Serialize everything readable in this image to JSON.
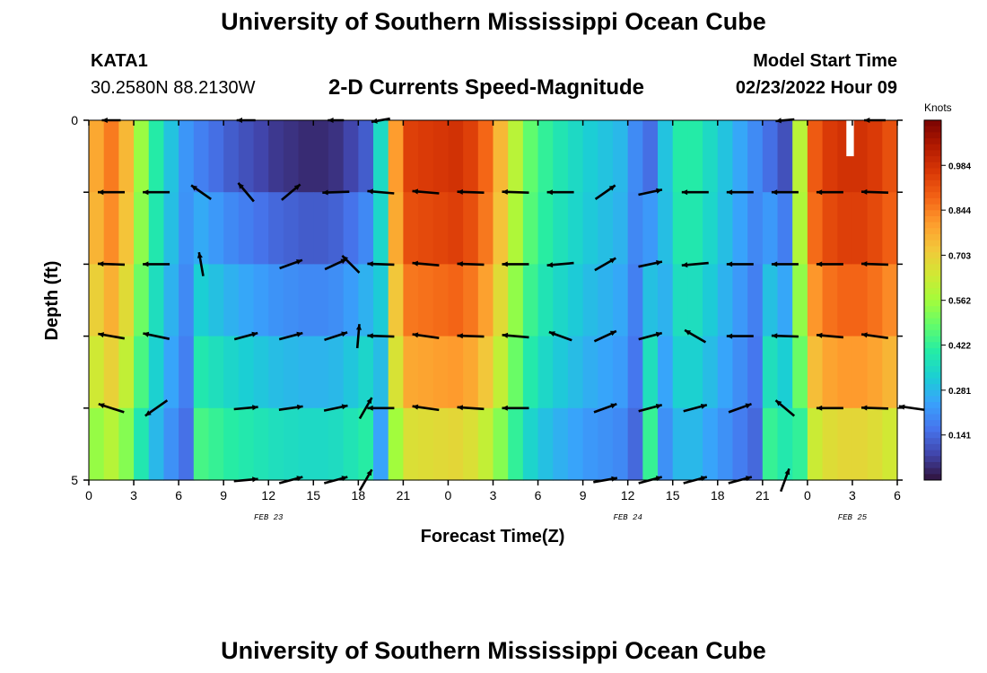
{
  "header": {
    "title": "University of Southern Mississippi Ocean Cube",
    "station": "KATA1",
    "coords": "30.2580N  88.2130W",
    "subtitle": "2-D Currents Speed-Magnitude",
    "model_start_label": "Model Start Time",
    "model_start_value": "02/23/2022 Hour 09"
  },
  "footer": {
    "title": "University of Southern Mississippi Ocean Cube"
  },
  "colors": {
    "scale": [
      "#30123b",
      "#4145ab",
      "#4675ed",
      "#39a2fc",
      "#1bcfd4",
      "#24eca6",
      "#61fc6c",
      "#a4fc3b",
      "#d1e834",
      "#f3c63a",
      "#fe9b2d",
      "#f36315",
      "#d93806",
      "#b11901",
      "#7a0402"
    ]
  },
  "chart_data": {
    "type": "heatmap",
    "title": "2-D Currents Speed-Magnitude",
    "xlabel": "Forecast Time(Z)",
    "ylabel": "Depth (ft)",
    "xlim": [
      0,
      54
    ],
    "ylim": [
      0,
      5
    ],
    "x_tick_labels": [
      "0",
      "3",
      "6",
      "9",
      "12",
      "15",
      "18",
      "21",
      "0",
      "3",
      "6",
      "9",
      "12",
      "15",
      "18",
      "21",
      "0",
      "3",
      "6"
    ],
    "y_tick_labels": [
      "0",
      "5"
    ],
    "date_labels": [
      {
        "hour": 12,
        "text": "FEB 23"
      },
      {
        "hour": 36,
        "text": "FEB 24"
      },
      {
        "hour": 51,
        "text": "FEB 25"
      }
    ],
    "colorbar": {
      "title": "Knots",
      "range": [
        0.0,
        1.125
      ],
      "ticks": [
        "0.141",
        "0.281",
        "0.422",
        "0.562",
        "0.703",
        "0.844",
        "0.984"
      ],
      "tick_values": [
        0.141,
        0.281,
        0.422,
        0.562,
        0.703,
        0.844,
        0.984
      ]
    },
    "time_hours": [
      0,
      1,
      2,
      3,
      4,
      5,
      6,
      7,
      8,
      9,
      10,
      11,
      12,
      13,
      14,
      15,
      16,
      17,
      18,
      19,
      20,
      21,
      22,
      23,
      24,
      25,
      26,
      27,
      28,
      29,
      30,
      31,
      32,
      33,
      34,
      35,
      36,
      37,
      38,
      39,
      40,
      41,
      42,
      43,
      44,
      45,
      46,
      47,
      48,
      49,
      50,
      51,
      52,
      53,
      54
    ],
    "depth_layers": [
      0.5,
      1.5,
      2.5,
      3.5,
      4.5
    ],
    "speed_profile_knots": [
      0.78,
      0.85,
      0.75,
      0.55,
      0.4,
      0.3,
      0.22,
      0.18,
      0.15,
      0.12,
      0.1,
      0.08,
      0.06,
      0.05,
      0.04,
      0.04,
      0.05,
      0.08,
      0.12,
      0.35,
      0.8,
      0.95,
      0.96,
      0.97,
      0.98,
      0.95,
      0.88,
      0.75,
      0.6,
      0.48,
      0.42,
      0.38,
      0.35,
      0.32,
      0.3,
      0.28,
      0.2,
      0.15,
      0.3,
      0.4,
      0.4,
      0.35,
      0.3,
      0.25,
      0.2,
      0.15,
      0.1,
      0.6,
      0.9,
      0.96,
      0.98,
      0.98,
      0.96,
      0.92,
      0.85
    ],
    "depth_factors": [
      1.0,
      0.97,
      0.9,
      0.82,
      0.7
    ],
    "vector_times": [
      1.5,
      4.5,
      7.5,
      10.5,
      13.5,
      16.5,
      19.5,
      22.5,
      25.5,
      28.5,
      31.5,
      34.5,
      37.5,
      40.5,
      43.5,
      46.5,
      49.5,
      52.5
    ],
    "vector_depths": [
      0,
      1,
      2,
      3,
      4,
      5
    ],
    "vectors": [
      {
        "t": 1.5,
        "d": 0,
        "dir": 180,
        "mag": 0.7
      },
      {
        "t": 10.5,
        "d": 0,
        "dir": 180,
        "mag": 0.7
      },
      {
        "t": 16.5,
        "d": 0,
        "dir": 180,
        "mag": 0.6
      },
      {
        "t": 19.5,
        "d": 0,
        "dir": 190,
        "mag": 0.7
      },
      {
        "t": 46.5,
        "d": 0,
        "dir": 185,
        "mag": 0.7
      },
      {
        "t": 52.5,
        "d": 0,
        "dir": 180,
        "mag": 0.8
      },
      {
        "t": 1.5,
        "d": 1,
        "dir": 180,
        "mag": 1
      },
      {
        "t": 4.5,
        "d": 1,
        "dir": 180,
        "mag": 1
      },
      {
        "t": 7.5,
        "d": 1,
        "dir": 145,
        "mag": 0.9
      },
      {
        "t": 10.5,
        "d": 1,
        "dir": 130,
        "mag": 0.9
      },
      {
        "t": 13.5,
        "d": 1,
        "dir": 40,
        "mag": 0.9
      },
      {
        "t": 16.5,
        "d": 1,
        "dir": 182,
        "mag": 1
      },
      {
        "t": 19.5,
        "d": 1,
        "dir": 175,
        "mag": 1
      },
      {
        "t": 22.5,
        "d": 1,
        "dir": 175,
        "mag": 1
      },
      {
        "t": 25.5,
        "d": 1,
        "dir": 178,
        "mag": 1
      },
      {
        "t": 28.5,
        "d": 1,
        "dir": 178,
        "mag": 1
      },
      {
        "t": 31.5,
        "d": 1,
        "dir": 180,
        "mag": 1
      },
      {
        "t": 34.5,
        "d": 1,
        "dir": 35,
        "mag": 0.9
      },
      {
        "t": 37.5,
        "d": 1,
        "dir": 12,
        "mag": 0.9
      },
      {
        "t": 40.5,
        "d": 1,
        "dir": 180,
        "mag": 1
      },
      {
        "t": 43.5,
        "d": 1,
        "dir": 180,
        "mag": 1
      },
      {
        "t": 46.5,
        "d": 1,
        "dir": 180,
        "mag": 1
      },
      {
        "t": 49.5,
        "d": 1,
        "dir": 180,
        "mag": 1
      },
      {
        "t": 52.5,
        "d": 1,
        "dir": 178,
        "mag": 1
      },
      {
        "t": 1.5,
        "d": 2,
        "dir": 178,
        "mag": 1
      },
      {
        "t": 4.5,
        "d": 2,
        "dir": 180,
        "mag": 1
      },
      {
        "t": 7.5,
        "d": 2,
        "dir": 100,
        "mag": 0.9
      },
      {
        "t": 13.5,
        "d": 2,
        "dir": 20,
        "mag": 0.9
      },
      {
        "t": 16.5,
        "d": 2,
        "dir": 25,
        "mag": 0.9
      },
      {
        "t": 17.5,
        "d": 2,
        "dir": 135,
        "mag": 0.9
      },
      {
        "t": 19.5,
        "d": 2,
        "dir": 178,
        "mag": 1
      },
      {
        "t": 22.5,
        "d": 2,
        "dir": 175,
        "mag": 1
      },
      {
        "t": 25.5,
        "d": 2,
        "dir": 178,
        "mag": 1
      },
      {
        "t": 28.5,
        "d": 2,
        "dir": 180,
        "mag": 1
      },
      {
        "t": 31.5,
        "d": 2,
        "dir": 185,
        "mag": 1
      },
      {
        "t": 34.5,
        "d": 2,
        "dir": 30,
        "mag": 0.9
      },
      {
        "t": 37.5,
        "d": 2,
        "dir": 12,
        "mag": 0.9
      },
      {
        "t": 40.5,
        "d": 2,
        "dir": 185,
        "mag": 1
      },
      {
        "t": 43.5,
        "d": 2,
        "dir": 180,
        "mag": 1
      },
      {
        "t": 46.5,
        "d": 2,
        "dir": 180,
        "mag": 1
      },
      {
        "t": 49.5,
        "d": 2,
        "dir": 180,
        "mag": 1
      },
      {
        "t": 52.5,
        "d": 2,
        "dir": 178,
        "mag": 1
      },
      {
        "t": 1.5,
        "d": 3,
        "dir": 170,
        "mag": 1
      },
      {
        "t": 4.5,
        "d": 3,
        "dir": 168,
        "mag": 1
      },
      {
        "t": 10.5,
        "d": 3,
        "dir": 15,
        "mag": 0.9
      },
      {
        "t": 13.5,
        "d": 3,
        "dir": 15,
        "mag": 0.9
      },
      {
        "t": 16.5,
        "d": 3,
        "dir": 18,
        "mag": 0.9
      },
      {
        "t": 18.0,
        "d": 3,
        "dir": 85,
        "mag": 0.9
      },
      {
        "t": 19.5,
        "d": 3,
        "dir": 178,
        "mag": 1
      },
      {
        "t": 22.5,
        "d": 3,
        "dir": 172,
        "mag": 1
      },
      {
        "t": 25.5,
        "d": 3,
        "dir": 178,
        "mag": 1
      },
      {
        "t": 28.5,
        "d": 3,
        "dir": 175,
        "mag": 1
      },
      {
        "t": 31.5,
        "d": 3,
        "dir": 160,
        "mag": 0.9
      },
      {
        "t": 34.5,
        "d": 3,
        "dir": 25,
        "mag": 0.9
      },
      {
        "t": 37.5,
        "d": 3,
        "dir": 15,
        "mag": 0.9
      },
      {
        "t": 40.5,
        "d": 3,
        "dir": 150,
        "mag": 0.9
      },
      {
        "t": 43.5,
        "d": 3,
        "dir": 180,
        "mag": 1
      },
      {
        "t": 46.5,
        "d": 3,
        "dir": 178,
        "mag": 1
      },
      {
        "t": 49.5,
        "d": 3,
        "dir": 175,
        "mag": 1
      },
      {
        "t": 52.5,
        "d": 3,
        "dir": 172,
        "mag": 1
      },
      {
        "t": 1.5,
        "d": 4,
        "dir": 162,
        "mag": 1
      },
      {
        "t": 4.5,
        "d": 4,
        "dir": 215,
        "mag": 1
      },
      {
        "t": 10.5,
        "d": 4,
        "dir": 5,
        "mag": 0.9
      },
      {
        "t": 13.5,
        "d": 4,
        "dir": 8,
        "mag": 0.9
      },
      {
        "t": 16.5,
        "d": 4,
        "dir": 12,
        "mag": 0.9
      },
      {
        "t": 18.5,
        "d": 4,
        "dir": 60,
        "mag": 0.9
      },
      {
        "t": 19.5,
        "d": 4,
        "dir": 180,
        "mag": 1
      },
      {
        "t": 22.5,
        "d": 4,
        "dir": 172,
        "mag": 1
      },
      {
        "t": 25.5,
        "d": 4,
        "dir": 176,
        "mag": 1
      },
      {
        "t": 28.5,
        "d": 4,
        "dir": 180,
        "mag": 1
      },
      {
        "t": 34.5,
        "d": 4,
        "dir": 20,
        "mag": 0.9
      },
      {
        "t": 37.5,
        "d": 4,
        "dir": 15,
        "mag": 0.9
      },
      {
        "t": 40.5,
        "d": 4,
        "dir": 15,
        "mag": 0.9
      },
      {
        "t": 43.5,
        "d": 4,
        "dir": 20,
        "mag": 0.9
      },
      {
        "t": 46.5,
        "d": 4,
        "dir": 140,
        "mag": 0.9
      },
      {
        "t": 49.5,
        "d": 4,
        "dir": 180,
        "mag": 1
      },
      {
        "t": 52.5,
        "d": 4,
        "dir": 178,
        "mag": 1
      },
      {
        "t": 55.0,
        "d": 4,
        "dir": 172,
        "mag": 1
      },
      {
        "t": 10.5,
        "d": 5,
        "dir": 5,
        "mag": 0.9
      },
      {
        "t": 13.5,
        "d": 5,
        "dir": 15,
        "mag": 0.9
      },
      {
        "t": 16.5,
        "d": 5,
        "dir": 15,
        "mag": 0.9
      },
      {
        "t": 18.5,
        "d": 5,
        "dir": 60,
        "mag": 0.9
      },
      {
        "t": 34.5,
        "d": 5,
        "dir": 10,
        "mag": 0.9
      },
      {
        "t": 37.5,
        "d": 5,
        "dir": 15,
        "mag": 0.9
      },
      {
        "t": 40.5,
        "d": 5,
        "dir": 15,
        "mag": 0.9
      },
      {
        "t": 43.5,
        "d": 5,
        "dir": 15,
        "mag": 0.9
      },
      {
        "t": 46.5,
        "d": 5,
        "dir": 70,
        "mag": 0.9
      }
    ]
  }
}
